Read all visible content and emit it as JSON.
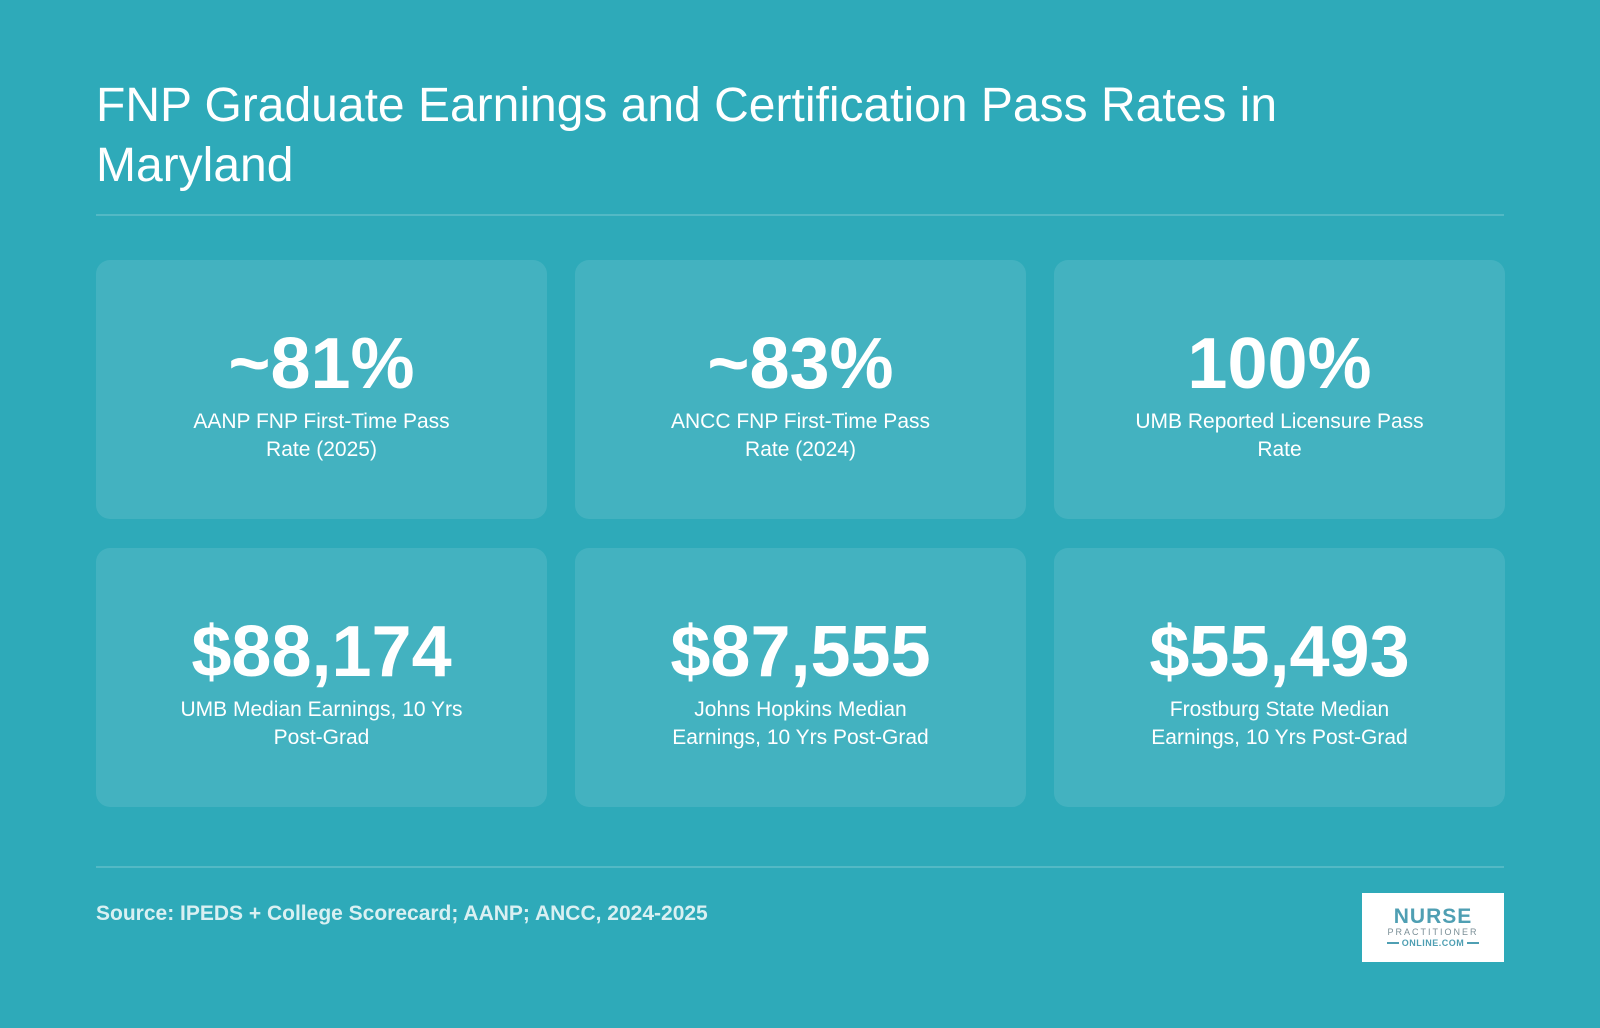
{
  "header": {
    "title": "FNP Graduate Earnings and Certification Pass Rates in Maryland"
  },
  "stats": [
    {
      "value": "~81%",
      "label": "AANP FNP First-Time Pass Rate (2025)"
    },
    {
      "value": "~83%",
      "label": "ANCC FNP First-Time Pass Rate (2024)"
    },
    {
      "value": "100%",
      "label": "UMB Reported Licensure Pass Rate"
    },
    {
      "value": "$88,174",
      "label": "UMB Median Earnings, 10 Yrs Post-Grad"
    },
    {
      "value": "$87,555",
      "label": "Johns Hopkins Median Earnings, 10 Yrs Post-Grad"
    },
    {
      "value": "$55,493",
      "label": "Frostburg State Median Earnings, 10 Yrs Post-Grad"
    }
  ],
  "footer": {
    "source": "Source: IPEDS + College Scorecard; AANP; ANCC, 2024-2025",
    "logo": {
      "main": "NURSE",
      "sub": "PRACTITIONER",
      "domain": "ONLINE.COM"
    }
  },
  "colors": {
    "background": "#2eaab9",
    "card": "rgba(255,255,255,0.10)",
    "text": "#ffffff",
    "logo_accent": "#4f9fb3"
  }
}
